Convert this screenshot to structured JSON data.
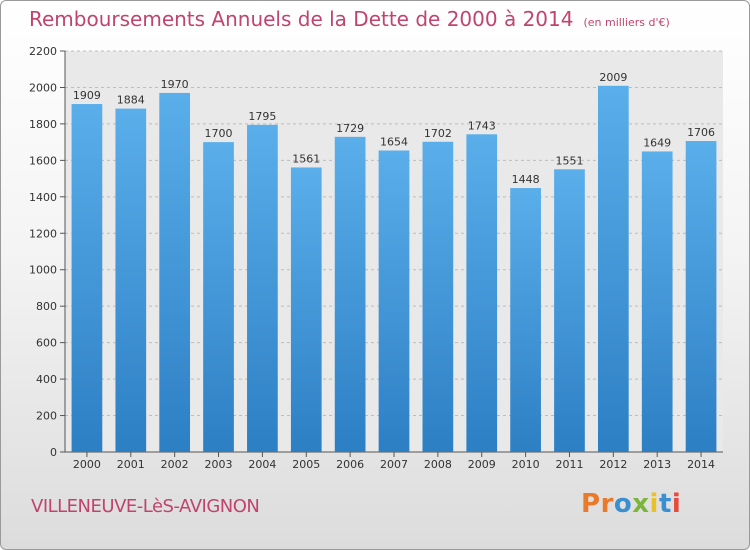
{
  "chart_data": {
    "type": "bar",
    "title": "Remboursements Annuels de la Dette de 2000 à 2014",
    "subtitle": "(en milliers d'€)",
    "categories": [
      "2000",
      "2001",
      "2002",
      "2003",
      "2004",
      "2005",
      "2006",
      "2007",
      "2008",
      "2009",
      "2010",
      "2011",
      "2012",
      "2013",
      "2014"
    ],
    "values": [
      1909,
      1884,
      1970,
      1700,
      1795,
      1561,
      1729,
      1654,
      1702,
      1743,
      1448,
      1551,
      2009,
      1649,
      1706
    ],
    "ylim": [
      0,
      2200
    ],
    "yticks": [
      0,
      200,
      400,
      600,
      800,
      1000,
      1200,
      1400,
      1600,
      1800,
      2000,
      2200
    ],
    "grid": true,
    "bar_color": "#4f9fe0"
  },
  "footer": {
    "city": "VILLENEUVE-LèS-AVIGNON",
    "logo": "Proxiti"
  },
  "colors": {
    "title": "#c0446e",
    "logo_letters": [
      "#e87a2a",
      "#e87a2a",
      "#3a8fd0",
      "#7bb63a",
      "#e8c12a",
      "#3a8fd0",
      "#e84a3a"
    ]
  }
}
